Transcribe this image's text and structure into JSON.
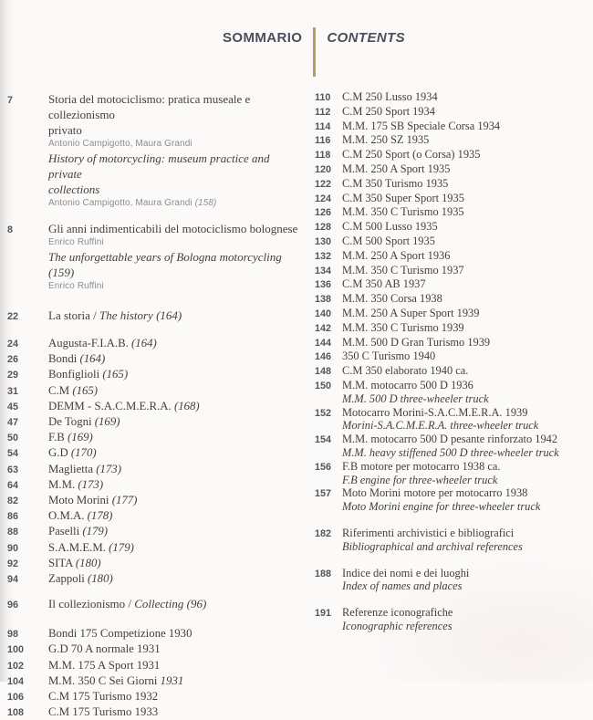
{
  "header": {
    "sommario": "SOMMARIO",
    "contents": "CONTENTS",
    "divider_color": "#b49c63"
  },
  "colors": {
    "serif_text": "#45403a",
    "sans_gray": "#8e8d90",
    "page_number": "#55555a",
    "header_text": "#4d4d5b",
    "background": "#fbfaf9"
  },
  "features": [
    {
      "num": "7",
      "it_line1": "Storia del motociclismo: pratica museale e collezionismo",
      "it_line2": "privato",
      "authors1": "Antonio Campigotto, Maura Grandi",
      "en_line1": "History of motorcycling: museum practice and private",
      "en_line2": "collections",
      "authors2": "Antonio Campigotto, Maura Grandi ",
      "authors2_ref": "(158)"
    },
    {
      "num": "8",
      "it_line1": "Gli anni indimenticabili del motociclismo bolognese",
      "authors1": "Enrico Ruffini",
      "en_line1": "The unforgettable years of Bologna motorcycling (159)",
      "authors2": "Enrico Ruffini"
    }
  ],
  "section_history": {
    "num": "22",
    "roman": "La storia / ",
    "italic": "The history (164)"
  },
  "section_collecting": {
    "num": "96",
    "roman": "Il collezionismo / ",
    "italic": "Collecting (96)"
  },
  "brands": [
    {
      "num": "24",
      "text": "Augusta-F.I.A.B. ",
      "ref": "(164)"
    },
    {
      "num": "26",
      "text": "Bondi ",
      "ref": "(164)"
    },
    {
      "num": "29",
      "text": "Bonfiglioli ",
      "ref": "(165)"
    },
    {
      "num": "31",
      "text": "C.M ",
      "ref": "(165)"
    },
    {
      "num": "45",
      "text": "DEMM - S.A.C.M.E.R.A. ",
      "ref": "(168)"
    },
    {
      "num": "47",
      "text": "De Togni ",
      "ref": "(169)"
    },
    {
      "num": "50",
      "text": "F.B ",
      "ref": "(169)"
    },
    {
      "num": "54",
      "text": "G.D ",
      "ref": "(170)"
    },
    {
      "num": "63",
      "text": "Maglietta ",
      "ref": "(173)"
    },
    {
      "num": "64",
      "text": "M.M. ",
      "ref": "(173)"
    },
    {
      "num": "82",
      "text": "Moto Morini ",
      "ref": "(177)"
    },
    {
      "num": "86",
      "text": "O.M.A. ",
      "ref": "(178)"
    },
    {
      "num": "88",
      "text": "Paselli ",
      "ref": "(179)"
    },
    {
      "num": "90",
      "text": "S.A.M.E.M. ",
      "ref": "(179)"
    },
    {
      "num": "92",
      "text": "SITA ",
      "ref": "(180)"
    },
    {
      "num": "94",
      "text": "Zappoli ",
      "ref": "(180)"
    }
  ],
  "models_left": [
    {
      "num": "98",
      "text": "Bondi 175 Competizione 1930",
      "ref": ""
    },
    {
      "num": "100",
      "text": "G.D 70 A normale 1931",
      "ref": ""
    },
    {
      "num": "102",
      "text": "M.M. 175 A Sport 1931",
      "ref": ""
    },
    {
      "num": "104",
      "text": "M.M. 350 C Sei Giorni ",
      "ref": "1931"
    },
    {
      "num": "106",
      "text": "C.M 175 Turismo 1932",
      "ref": ""
    },
    {
      "num": "108",
      "text": "C.M 175 Turismo 1933",
      "ref": ""
    }
  ],
  "models_right": [
    {
      "num": "110",
      "text": "C.M 250 Lusso 1934",
      "sub": ""
    },
    {
      "num": "112",
      "text": "C.M 250 Sport 1934",
      "sub": ""
    },
    {
      "num": "114",
      "text": "M.M. 175 SB Speciale Corsa 1934",
      "sub": ""
    },
    {
      "num": "116",
      "text": "M.M. 250 SZ 1935",
      "sub": ""
    },
    {
      "num": "118",
      "text": "C.M 250 Sport (o Corsa) 1935",
      "sub": ""
    },
    {
      "num": "120",
      "text": "M.M. 250 A Sport 1935",
      "sub": ""
    },
    {
      "num": "122",
      "text": "C.M 350 Turismo 1935",
      "sub": ""
    },
    {
      "num": "124",
      "text": "C.M 350 Super Sport 1935",
      "sub": ""
    },
    {
      "num": "126",
      "text": "M.M. 350 C Turismo 1935",
      "sub": ""
    },
    {
      "num": "128",
      "text": "C.M 500 Lusso 1935",
      "sub": ""
    },
    {
      "num": "130",
      "text": "C.M 500 Sport 1935",
      "sub": ""
    },
    {
      "num": "132",
      "text": "M.M. 250 A Sport 1936",
      "sub": ""
    },
    {
      "num": "134",
      "text": "M.M. 350 C Turismo 1937",
      "sub": ""
    },
    {
      "num": "136",
      "text": "C.M 350 AB 1937",
      "sub": ""
    },
    {
      "num": "138",
      "text": "M.M. 350 Corsa 1938",
      "sub": ""
    },
    {
      "num": "140",
      "text": "M.M. 250 A Super Sport 1939",
      "sub": ""
    },
    {
      "num": "142",
      "text": "M.M. 350 C Turismo 1939",
      "sub": ""
    },
    {
      "num": "144",
      "text": "M.M. 500 D Gran Turismo 1939",
      "sub": ""
    },
    {
      "num": "146",
      "text": "350 C Turismo 1940",
      "sub": ""
    },
    {
      "num": "148",
      "text": "C.M 350 elaborato 1940 ca.",
      "sub": ""
    },
    {
      "num": "150",
      "text": "M.M. motocarro 500 D 1936",
      "sub": "M.M. 500 D three-wheeler truck"
    },
    {
      "num": "152",
      "text": "Motocarro Morini-S.A.C.M.E.R.A. 1939",
      "sub": "Morini-S.A.C.M.E.R.A. three-wheeler truck"
    },
    {
      "num": "154",
      "text": "M.M. motocarro 500 D pesante rinforzato 1942",
      "sub": "M.M. heavy stiffened 500 D three-wheeler truck"
    },
    {
      "num": "156",
      "text": "F.B motore per motocarro 1938 ca.",
      "sub": "F.B engine for three-wheeler truck"
    },
    {
      "num": "157",
      "text": "Moto Morini motore per motocarro 1938",
      "sub": "Moto Morini engine for three-wheeler truck"
    }
  ],
  "endmatter": [
    {
      "num": "182",
      "text": "Riferimenti archivistici e bibliografici",
      "sub": "Bibliographical and archival references"
    },
    {
      "num": "188",
      "text": "Indice dei nomi e dei luoghi",
      "sub": "Index of names and places"
    },
    {
      "num": "191",
      "text": "Referenze iconografiche",
      "sub": "Iconographic references"
    }
  ]
}
